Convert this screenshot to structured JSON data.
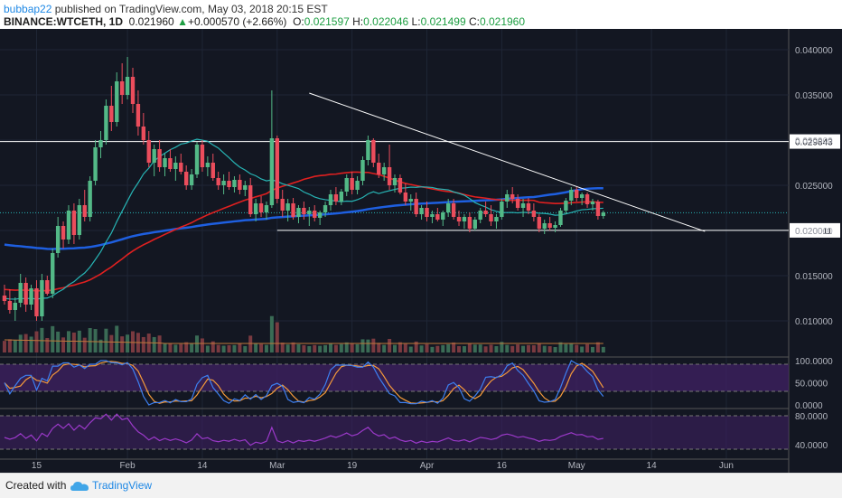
{
  "header": {
    "user": "bubbap22",
    "published_text": "published on TradingView.com, May 03, 2018 20:15 EST",
    "symbol": "BINANCE:WTCETH, 1D",
    "last": "0.021960",
    "change_arrow": "▲",
    "change": "+0.000570 (+2.66%)",
    "o_label": "O:",
    "o_value": "0.021597",
    "h_label": "H:",
    "h_value": "0.022046",
    "l_label": "L:",
    "l_value": "0.021499",
    "c_label": "C:",
    "c_value": "0.021960"
  },
  "footer": {
    "created_with": "Created with",
    "brand": "TradingView"
  },
  "colors": {
    "background": "#131722",
    "up": "#53b987",
    "down": "#eb4d5c",
    "ma_red": "#e02020",
    "ma_blue": "#1e5fe0",
    "ma_teal": "#27b5b5",
    "stoch_k": "#3d7ff0",
    "stoch_d": "#f59a3a",
    "rsi": "#9b39c9",
    "band": "#3d2060"
  },
  "chart_data": {
    "type": "candlestick",
    "price_axis": {
      "ylim": [
        0.0075,
        0.0415
      ],
      "ticks": [
        "0.040000",
        "0.035000",
        "0.030000",
        "0.025000",
        "0.020000",
        "0.015000",
        "0.010000"
      ],
      "tick_values": [
        0.04,
        0.035,
        0.03,
        0.025,
        0.02,
        0.015,
        0.01
      ]
    },
    "x_axis": {
      "labels": [
        "15",
        "Feb",
        "14",
        "Mar",
        "19",
        "Apr",
        "16",
        "May",
        "14",
        "Jun"
      ],
      "label_index": [
        6,
        23,
        37,
        51,
        65,
        79,
        93,
        107,
        121,
        135
      ],
      "total_slots": 147
    },
    "horizontal_levels": [
      {
        "label": "0.029843",
        "value": 0.029843
      },
      {
        "label": "0.020011",
        "value": 0.020011
      }
    ],
    "support_line": {
      "from_index": 51,
      "to_index": 107,
      "value": 0.020011
    },
    "trendline": {
      "from": [
        57,
        0.0352
      ],
      "to": [
        131,
        0.0199
      ]
    },
    "last_price": 0.02196,
    "ohlc": [
      [
        0.0128,
        0.014,
        0.0118,
        0.0122
      ],
      [
        0.0122,
        0.0135,
        0.0108,
        0.0112
      ],
      [
        0.0112,
        0.0126,
        0.01,
        0.012
      ],
      [
        0.012,
        0.0152,
        0.0115,
        0.0142
      ],
      [
        0.0142,
        0.0148,
        0.011,
        0.0118
      ],
      [
        0.0118,
        0.014,
        0.0112,
        0.0136
      ],
      [
        0.0136,
        0.0145,
        0.01,
        0.0105
      ],
      [
        0.0105,
        0.0152,
        0.01,
        0.0145
      ],
      [
        0.0145,
        0.015,
        0.0128,
        0.013
      ],
      [
        0.013,
        0.018,
        0.0125,
        0.0175
      ],
      [
        0.0175,
        0.0215,
        0.017,
        0.0205
      ],
      [
        0.0205,
        0.021,
        0.018,
        0.019
      ],
      [
        0.019,
        0.0228,
        0.0185,
        0.0222
      ],
      [
        0.0222,
        0.023,
        0.0185,
        0.0195
      ],
      [
        0.0195,
        0.0235,
        0.019,
        0.0228
      ],
      [
        0.0228,
        0.0245,
        0.021,
        0.0215
      ],
      [
        0.0215,
        0.026,
        0.021,
        0.0255
      ],
      [
        0.0255,
        0.03,
        0.025,
        0.0292
      ],
      [
        0.0292,
        0.031,
        0.028,
        0.03
      ],
      [
        0.03,
        0.0345,
        0.0295,
        0.0338
      ],
      [
        0.0338,
        0.036,
        0.031,
        0.032
      ],
      [
        0.032,
        0.0375,
        0.0315,
        0.0365
      ],
      [
        0.0365,
        0.0385,
        0.034,
        0.035
      ],
      [
        0.035,
        0.0392,
        0.0345,
        0.037
      ],
      [
        0.037,
        0.038,
        0.033,
        0.034
      ],
      [
        0.034,
        0.0355,
        0.0305,
        0.0315
      ],
      [
        0.0315,
        0.033,
        0.0295,
        0.03
      ],
      [
        0.03,
        0.031,
        0.027,
        0.0275
      ],
      [
        0.0275,
        0.0295,
        0.026,
        0.029
      ],
      [
        0.029,
        0.03,
        0.0265,
        0.027
      ],
      [
        0.027,
        0.0285,
        0.026,
        0.028
      ],
      [
        0.028,
        0.029,
        0.0265,
        0.0268
      ],
      [
        0.0268,
        0.0282,
        0.0255,
        0.0275
      ],
      [
        0.0275,
        0.0285,
        0.0262,
        0.0265
      ],
      [
        0.0265,
        0.0272,
        0.0245,
        0.025
      ],
      [
        0.025,
        0.0268,
        0.0245,
        0.0262
      ],
      [
        0.0262,
        0.0298,
        0.0258,
        0.0295
      ],
      [
        0.0295,
        0.03,
        0.0265,
        0.027
      ],
      [
        0.027,
        0.0282,
        0.026,
        0.0275
      ],
      [
        0.0275,
        0.0285,
        0.0255,
        0.0258
      ],
      [
        0.0258,
        0.0265,
        0.0245,
        0.025
      ],
      [
        0.025,
        0.0262,
        0.024,
        0.0255
      ],
      [
        0.0255,
        0.0265,
        0.0245,
        0.0248
      ],
      [
        0.0248,
        0.026,
        0.0242,
        0.0256
      ],
      [
        0.0256,
        0.0262,
        0.024,
        0.0245
      ],
      [
        0.0245,
        0.0255,
        0.0238,
        0.025
      ],
      [
        0.025,
        0.0258,
        0.0215,
        0.0218
      ],
      [
        0.0218,
        0.0235,
        0.021,
        0.023
      ],
      [
        0.023,
        0.0238,
        0.0215,
        0.022
      ],
      [
        0.022,
        0.0232,
        0.0212,
        0.0228
      ],
      [
        0.0228,
        0.0355,
        0.0225,
        0.0302
      ],
      [
        0.0302,
        0.0305,
        0.023,
        0.0235
      ],
      [
        0.0235,
        0.0245,
        0.0215,
        0.0222
      ],
      [
        0.0222,
        0.0235,
        0.021,
        0.023
      ],
      [
        0.023,
        0.0236,
        0.0212,
        0.0215
      ],
      [
        0.0215,
        0.0228,
        0.0208,
        0.0225
      ],
      [
        0.0225,
        0.0232,
        0.0212,
        0.0218
      ],
      [
        0.0218,
        0.0226,
        0.0205,
        0.0222
      ],
      [
        0.0222,
        0.0228,
        0.021,
        0.0214
      ],
      [
        0.0214,
        0.0222,
        0.0206,
        0.022
      ],
      [
        0.022,
        0.0232,
        0.0215,
        0.0228
      ],
      [
        0.0228,
        0.0245,
        0.0222,
        0.024
      ],
      [
        0.024,
        0.0248,
        0.0228,
        0.0232
      ],
      [
        0.0232,
        0.0246,
        0.0228,
        0.0243
      ],
      [
        0.0243,
        0.0262,
        0.0238,
        0.0258
      ],
      [
        0.0258,
        0.0265,
        0.024,
        0.0245
      ],
      [
        0.0245,
        0.026,
        0.024,
        0.0255
      ],
      [
        0.0255,
        0.0282,
        0.025,
        0.0278
      ],
      [
        0.0278,
        0.0305,
        0.0272,
        0.03
      ],
      [
        0.03,
        0.0302,
        0.027,
        0.0275
      ],
      [
        0.0275,
        0.0285,
        0.0258,
        0.0262
      ],
      [
        0.0262,
        0.0275,
        0.0255,
        0.027
      ],
      [
        0.027,
        0.0295,
        0.0245,
        0.025
      ],
      [
        0.025,
        0.0262,
        0.0242,
        0.0258
      ],
      [
        0.0258,
        0.0262,
        0.024,
        0.0242
      ],
      [
        0.0242,
        0.0252,
        0.0228,
        0.0232
      ],
      [
        0.0232,
        0.024,
        0.0222,
        0.0235
      ],
      [
        0.0235,
        0.0242,
        0.0215,
        0.0218
      ],
      [
        0.0218,
        0.0228,
        0.0212,
        0.0225
      ],
      [
        0.0225,
        0.0232,
        0.021,
        0.0215
      ],
      [
        0.0215,
        0.0222,
        0.0208,
        0.0218
      ],
      [
        0.0218,
        0.0225,
        0.021,
        0.0212
      ],
      [
        0.0212,
        0.0222,
        0.0205,
        0.022
      ],
      [
        0.022,
        0.0235,
        0.0215,
        0.023
      ],
      [
        0.023,
        0.0235,
        0.0212,
        0.0215
      ],
      [
        0.0215,
        0.0222,
        0.0205,
        0.021
      ],
      [
        0.021,
        0.0218,
        0.0202,
        0.0215
      ],
      [
        0.0215,
        0.022,
        0.0198,
        0.0202
      ],
      [
        0.0202,
        0.0215,
        0.02,
        0.0212
      ],
      [
        0.0212,
        0.0225,
        0.0208,
        0.0222
      ],
      [
        0.0222,
        0.0232,
        0.0215,
        0.0218
      ],
      [
        0.0218,
        0.0228,
        0.0205,
        0.021
      ],
      [
        0.021,
        0.0218,
        0.0202,
        0.0215
      ],
      [
        0.0215,
        0.0235,
        0.0212,
        0.0232
      ],
      [
        0.0232,
        0.0245,
        0.0225,
        0.024
      ],
      [
        0.024,
        0.0248,
        0.023,
        0.0235
      ],
      [
        0.0235,
        0.024,
        0.0222,
        0.0225
      ],
      [
        0.0225,
        0.0235,
        0.0215,
        0.023
      ],
      [
        0.023,
        0.0236,
        0.0218,
        0.0222
      ],
      [
        0.0222,
        0.023,
        0.021,
        0.0215
      ],
      [
        0.0215,
        0.0218,
        0.0198,
        0.0202
      ],
      [
        0.0202,
        0.0212,
        0.0196,
        0.0208
      ],
      [
        0.0208,
        0.0215,
        0.02,
        0.0203
      ],
      [
        0.0203,
        0.021,
        0.0198,
        0.0206
      ],
      [
        0.0206,
        0.0225,
        0.0204,
        0.0222
      ],
      [
        0.0222,
        0.0236,
        0.0218,
        0.0233
      ],
      [
        0.0233,
        0.0248,
        0.0228,
        0.0245
      ],
      [
        0.0245,
        0.0248,
        0.0232,
        0.0236
      ],
      [
        0.0236,
        0.0242,
        0.0228,
        0.024
      ],
      [
        0.024,
        0.0242,
        0.0225,
        0.0229
      ],
      [
        0.0229,
        0.0235,
        0.0222,
        0.0232
      ],
      [
        0.0232,
        0.0234,
        0.0212,
        0.0216
      ],
      [
        0.0216,
        0.0222,
        0.0213,
        0.022
      ]
    ]
  }
}
